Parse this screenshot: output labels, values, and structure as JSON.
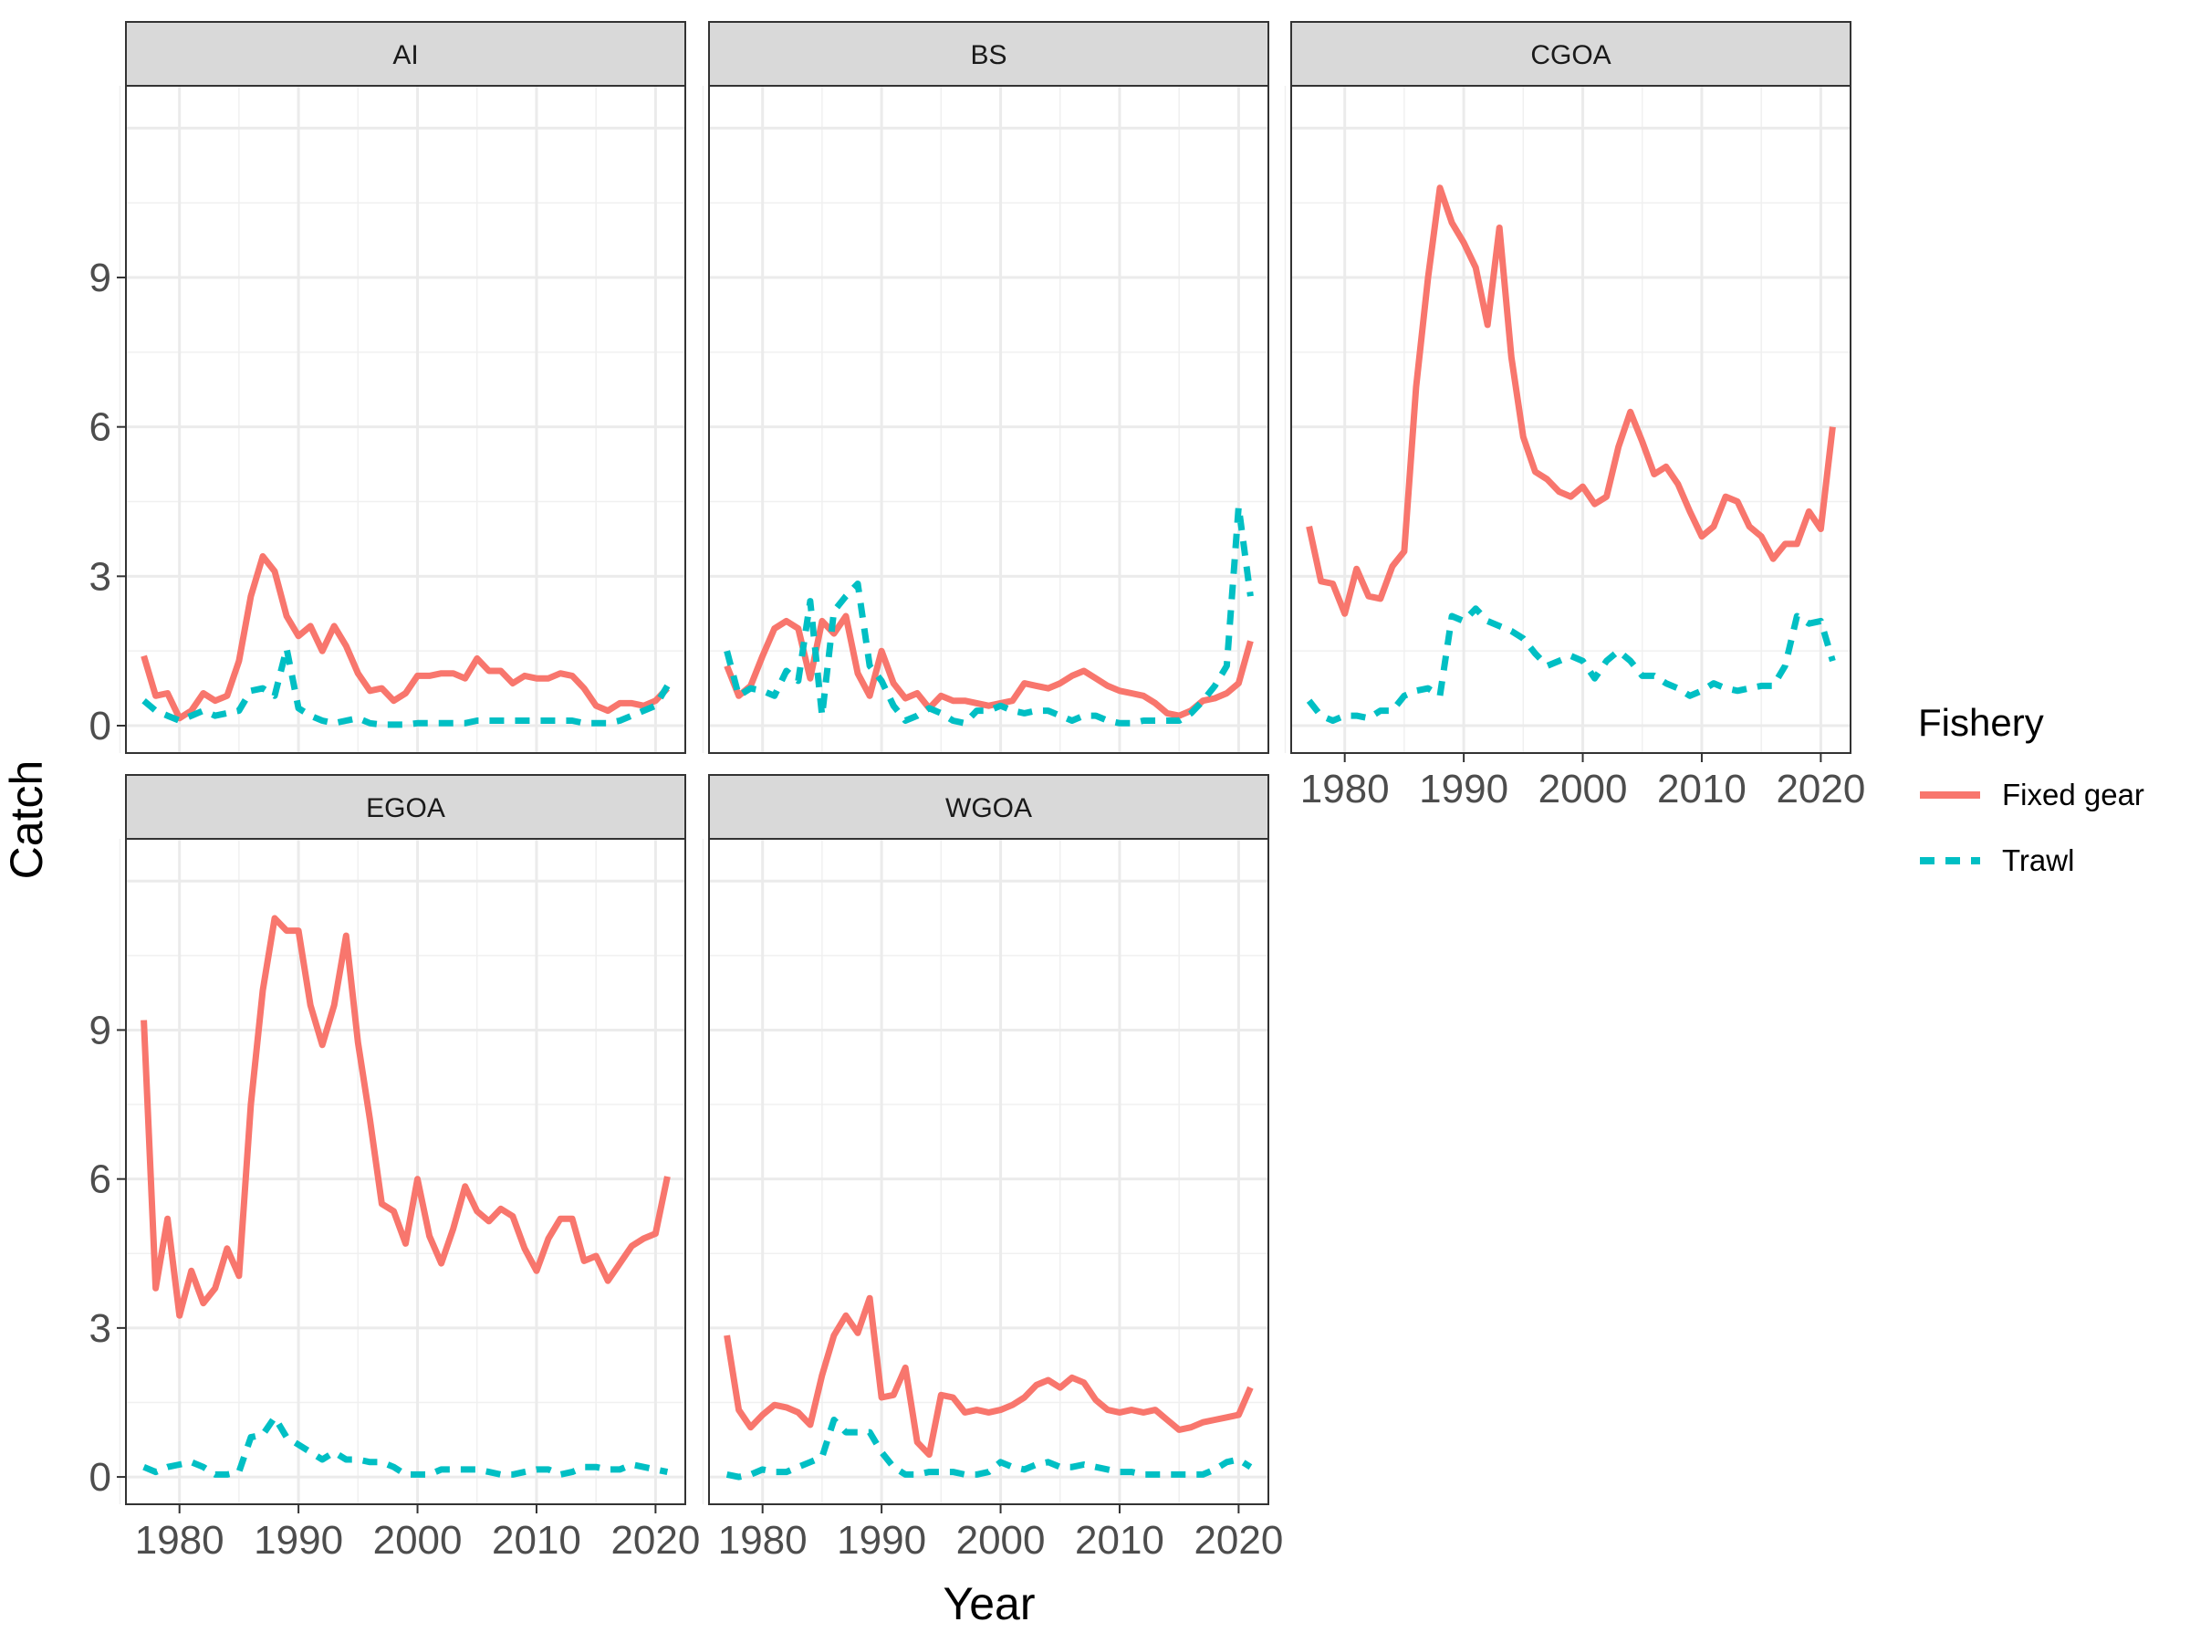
{
  "chart_data": {
    "type": "line",
    "layout": "facet_wrap",
    "xlabel": "Year",
    "ylabel": "Catch",
    "xlim": [
      1975.5,
      2022.5
    ],
    "ylim": [
      -0.55,
      12.85
    ],
    "x_ticks": [
      1980,
      1990,
      2000,
      2010,
      2020
    ],
    "y_ticks": [
      0,
      3,
      6,
      9
    ],
    "grid": true,
    "legend": {
      "title": "Fishery",
      "position": "right",
      "entries": [
        {
          "name": "Fixed gear",
          "color": "#F8766D",
          "dash": "solid"
        },
        {
          "name": "Trawl",
          "color": "#00BFC4",
          "dash": "dashed"
        }
      ]
    },
    "x": [
      1977,
      1978,
      1979,
      1980,
      1981,
      1982,
      1983,
      1984,
      1985,
      1986,
      1987,
      1988,
      1989,
      1990,
      1991,
      1992,
      1993,
      1994,
      1995,
      1996,
      1997,
      1998,
      1999,
      2000,
      2001,
      2002,
      2003,
      2004,
      2005,
      2006,
      2007,
      2008,
      2009,
      2010,
      2011,
      2012,
      2013,
      2014,
      2015,
      2016,
      2017,
      2018,
      2019,
      2020,
      2021
    ],
    "panels": [
      {
        "title": "AI",
        "series": [
          {
            "name": "Fixed gear",
            "values": [
              1.4,
              0.6,
              0.65,
              0.15,
              0.3,
              0.65,
              0.5,
              0.6,
              1.3,
              2.6,
              3.4,
              3.1,
              2.2,
              1.8,
              2.0,
              1.5,
              2.0,
              1.6,
              1.05,
              0.7,
              0.75,
              0.5,
              0.65,
              1.0,
              1.0,
              1.05,
              1.05,
              0.95,
              1.35,
              1.1,
              1.1,
              0.85,
              1.0,
              0.95,
              0.95,
              1.05,
              1.0,
              0.75,
              0.4,
              0.3,
              0.45,
              0.45,
              0.4,
              0.5,
              0.75
            ]
          },
          {
            "name": "Trawl",
            "values": [
              0.5,
              0.3,
              0.2,
              0.1,
              0.2,
              0.3,
              0.2,
              0.25,
              0.3,
              0.7,
              0.75,
              0.6,
              1.55,
              0.35,
              0.2,
              0.1,
              0.05,
              0.1,
              0.15,
              0.05,
              0.02,
              0.02,
              0.02,
              0.05,
              0.05,
              0.05,
              0.05,
              0.05,
              0.1,
              0.1,
              0.1,
              0.1,
              0.1,
              0.1,
              0.1,
              0.1,
              0.1,
              0.05,
              0.05,
              0.05,
              0.1,
              0.2,
              0.3,
              0.4,
              0.8
            ]
          }
        ]
      },
      {
        "title": "BS",
        "series": [
          {
            "name": "Fixed gear",
            "values": [
              1.2,
              0.6,
              0.8,
              1.4,
              1.95,
              2.1,
              1.95,
              0.95,
              2.1,
              1.85,
              2.2,
              1.05,
              0.6,
              1.5,
              0.85,
              0.55,
              0.65,
              0.35,
              0.6,
              0.5,
              0.5,
              0.45,
              0.4,
              0.45,
              0.5,
              0.85,
              0.8,
              0.75,
              0.85,
              1.0,
              1.1,
              0.95,
              0.8,
              0.7,
              0.65,
              0.6,
              0.45,
              0.25,
              0.2,
              0.3,
              0.5,
              0.55,
              0.65,
              0.85,
              1.7
            ]
          },
          {
            "name": "Trawl",
            "values": [
              1.5,
              0.6,
              0.75,
              0.7,
              0.6,
              1.1,
              0.9,
              2.5,
              0.2,
              2.3,
              2.6,
              2.85,
              1.2,
              0.9,
              0.4,
              0.1,
              0.2,
              0.35,
              0.25,
              0.1,
              0.05,
              0.3,
              0.3,
              0.4,
              0.3,
              0.25,
              0.3,
              0.3,
              0.2,
              0.1,
              0.2,
              0.2,
              0.1,
              0.05,
              0.05,
              0.1,
              0.1,
              0.1,
              0.1,
              0.25,
              0.5,
              0.8,
              1.2,
              4.4,
              2.6
            ]
          }
        ]
      },
      {
        "title": "CGOA",
        "series": [
          {
            "name": "Fixed gear",
            "values": [
              4.0,
              2.9,
              2.85,
              2.25,
              3.15,
              2.6,
              2.55,
              3.2,
              3.5,
              6.8,
              9.0,
              10.8,
              10.1,
              9.7,
              9.2,
              8.05,
              10.0,
              7.4,
              5.8,
              5.1,
              4.95,
              4.7,
              4.6,
              4.8,
              4.45,
              4.6,
              5.6,
              6.3,
              5.7,
              5.05,
              5.2,
              4.85,
              4.3,
              3.8,
              4.0,
              4.6,
              4.5,
              4.0,
              3.8,
              3.35,
              3.65,
              3.65,
              4.3,
              3.95,
              6.0
            ]
          },
          {
            "name": "Trawl",
            "values": [
              0.5,
              0.2,
              0.1,
              0.2,
              0.2,
              0.15,
              0.3,
              0.3,
              0.6,
              0.7,
              0.75,
              0.6,
              2.2,
              2.1,
              2.35,
              2.1,
              2.0,
              1.9,
              1.75,
              1.45,
              1.2,
              1.3,
              1.4,
              1.3,
              0.95,
              1.3,
              1.5,
              1.3,
              1.0,
              1.0,
              0.85,
              0.75,
              0.6,
              0.7,
              0.85,
              0.75,
              0.7,
              0.75,
              0.8,
              0.8,
              1.2,
              2.2,
              2.05,
              2.1,
              1.3
            ]
          }
        ]
      },
      {
        "title": "EGOA",
        "series": [
          {
            "name": "Fixed gear",
            "values": [
              9.2,
              3.8,
              5.2,
              3.25,
              4.15,
              3.5,
              3.8,
              4.6,
              4.05,
              7.5,
              9.8,
              11.25,
              11.0,
              11.0,
              9.5,
              8.7,
              9.5,
              10.9,
              8.75,
              7.2,
              5.5,
              5.35,
              4.7,
              6.0,
              4.85,
              4.3,
              5.0,
              5.85,
              5.35,
              5.15,
              5.4,
              5.25,
              4.6,
              4.15,
              4.8,
              5.2,
              5.2,
              4.35,
              4.45,
              3.95,
              4.3,
              4.65,
              4.8,
              4.9,
              6.05
            ]
          },
          {
            "name": "Trawl",
            "values": [
              0.2,
              0.1,
              0.2,
              0.25,
              0.3,
              0.2,
              0.05,
              0.05,
              0.1,
              0.8,
              0.85,
              1.2,
              0.8,
              0.65,
              0.5,
              0.35,
              0.5,
              0.35,
              0.35,
              0.3,
              0.3,
              0.2,
              0.05,
              0.05,
              0.05,
              0.15,
              0.15,
              0.15,
              0.15,
              0.1,
              0.05,
              0.05,
              0.1,
              0.15,
              0.15,
              0.05,
              0.1,
              0.2,
              0.2,
              0.15,
              0.15,
              0.25,
              0.2,
              0.15,
              0.1
            ]
          }
        ]
      },
      {
        "title": "WGOA",
        "series": [
          {
            "name": "Fixed gear",
            "values": [
              2.85,
              1.35,
              1.0,
              1.25,
              1.45,
              1.4,
              1.3,
              1.05,
              2.05,
              2.85,
              3.25,
              2.9,
              3.6,
              1.6,
              1.65,
              2.2,
              0.7,
              0.45,
              1.65,
              1.6,
              1.3,
              1.35,
              1.3,
              1.35,
              1.45,
              1.6,
              1.85,
              1.95,
              1.8,
              2.0,
              1.9,
              1.55,
              1.35,
              1.3,
              1.35,
              1.3,
              1.35,
              1.15,
              0.95,
              1.0,
              1.1,
              1.15,
              1.2,
              1.25,
              1.8
            ]
          },
          {
            "name": "Trawl",
            "values": [
              0.05,
              0.0,
              0.05,
              0.15,
              0.1,
              0.1,
              0.2,
              0.3,
              0.4,
              1.15,
              0.9,
              0.9,
              0.9,
              0.5,
              0.2,
              0.05,
              0.05,
              0.1,
              0.1,
              0.1,
              0.05,
              0.05,
              0.1,
              0.3,
              0.2,
              0.15,
              0.25,
              0.3,
              0.2,
              0.2,
              0.25,
              0.2,
              0.15,
              0.1,
              0.1,
              0.05,
              0.05,
              0.05,
              0.05,
              0.05,
              0.05,
              0.15,
              0.3,
              0.35,
              0.2
            ]
          }
        ]
      }
    ]
  }
}
